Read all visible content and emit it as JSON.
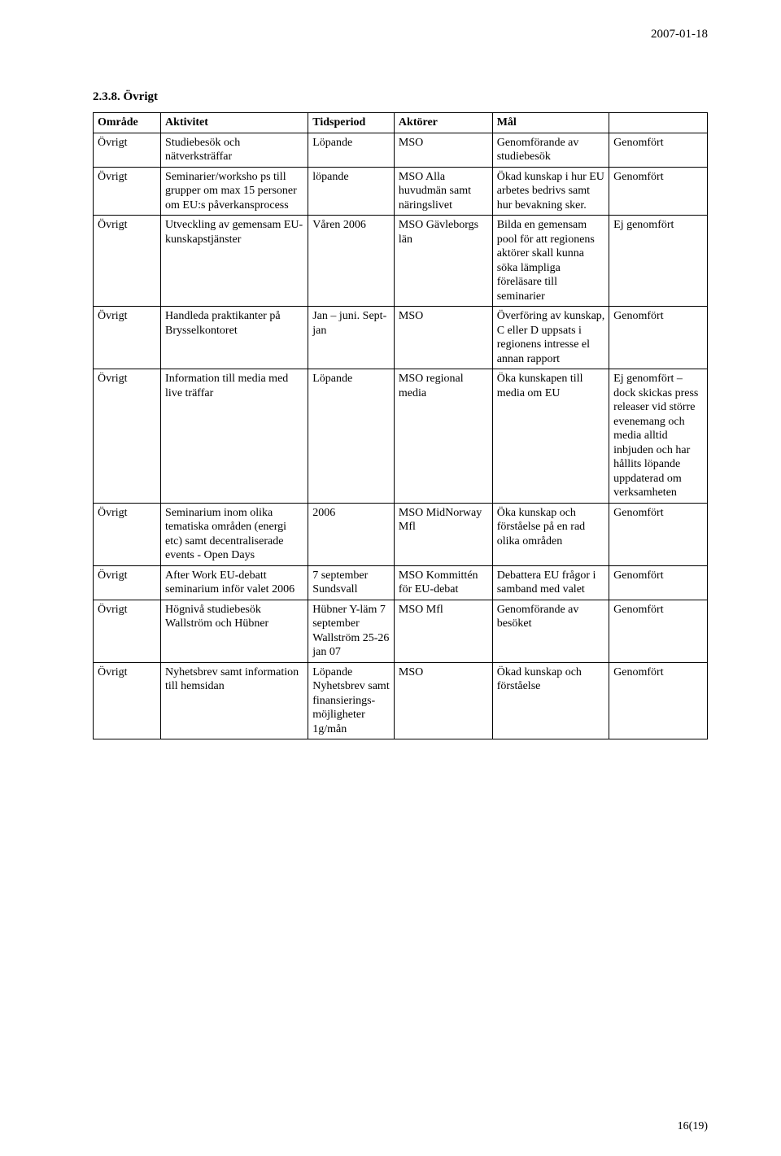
{
  "header": {
    "date": "2007-01-18"
  },
  "section": {
    "heading": "2.3.8. Övrigt"
  },
  "table": {
    "columns": [
      "Område",
      "Aktivitet",
      "Tidsperiod",
      "Aktörer",
      "Mål",
      ""
    ],
    "rows": [
      {
        "omrade": "Övrigt",
        "aktivitet": "Studiebesök och nätverksträffar",
        "tidsperiod": "Löpande",
        "aktorer": "MSO",
        "mal": "Genomförande av studiebesök",
        "resultat": "Genomfört"
      },
      {
        "omrade": "Övrigt",
        "aktivitet": "Seminarier/worksho ps till grupper om max 15 personer om EU:s påverkansprocess",
        "tidsperiod": "löpande",
        "aktorer": "MSO Alla huvudmän samt näringslivet",
        "mal": "Ökad kunskap i hur EU arbetes bedrivs samt hur bevakning sker.",
        "resultat": "Genomfört"
      },
      {
        "omrade": "Övrigt",
        "aktivitet": "Utveckling av gemensam EU-kunskapstjänster",
        "tidsperiod": "Våren 2006",
        "aktorer": "MSO Gävleborgs län",
        "mal": "Bilda en gemensam pool för att regionens aktörer skall kunna söka lämpliga föreläsare till seminarier",
        "resultat": "Ej genomfört"
      },
      {
        "omrade": "Övrigt",
        "aktivitet": "Handleda praktikanter på Brysselkontoret",
        "tidsperiod": "Jan – juni. Sept-jan",
        "aktorer": "MSO",
        "mal": "Överföring av kunskap, C eller D uppsats i regionens intresse el annan rapport",
        "resultat": "Genomfört"
      },
      {
        "omrade": "Övrigt",
        "aktivitet": "Information till media med live träffar",
        "tidsperiod": "Löpande",
        "aktorer": "MSO regional media",
        "mal": "Öka kunskapen till media om EU",
        "resultat": "Ej genomfört – dock skickas press releaser vid större evenemang och media alltid inbjuden och har hållits löpande uppdaterad om verksamheten"
      },
      {
        "omrade": "Övrigt",
        "aktivitet": "Seminarium inom olika tematiska områden (energi etc) samt decentraliserade events - Open Days",
        "tidsperiod": "2006",
        "aktorer": "MSO MidNorway Mfl",
        "mal": "Öka kunskap och förståelse på en rad olika områden",
        "resultat": "Genomfört"
      },
      {
        "omrade": "Övrigt",
        "aktivitet": "After Work EU-debatt seminarium inför valet 2006",
        "tidsperiod": "7 september Sundsvall",
        "aktorer": "MSO Kommittén för EU-debat",
        "mal": "Debattera EU frågor i samband med valet",
        "resultat": "Genomfört"
      },
      {
        "omrade": "Övrigt",
        "aktivitet": "Högnivå studiebesök Wallström och Hübner",
        "tidsperiod": "Hübner Y-läm 7 september Wallström 25-26 jan 07",
        "aktorer": "MSO Mfl",
        "mal": "Genomförande av besöket",
        "resultat": "Genomfört"
      },
      {
        "omrade": "Övrigt",
        "aktivitet": "Nyhetsbrev samt information till hemsidan",
        "tidsperiod": "Löpande Nyhetsbrev samt finansierings-möjligheter 1g/mån",
        "aktorer": "MSO",
        "mal": "Ökad kunskap och förståelse",
        "resultat": "Genomfört"
      }
    ]
  },
  "footer": {
    "page": "16(19)"
  }
}
